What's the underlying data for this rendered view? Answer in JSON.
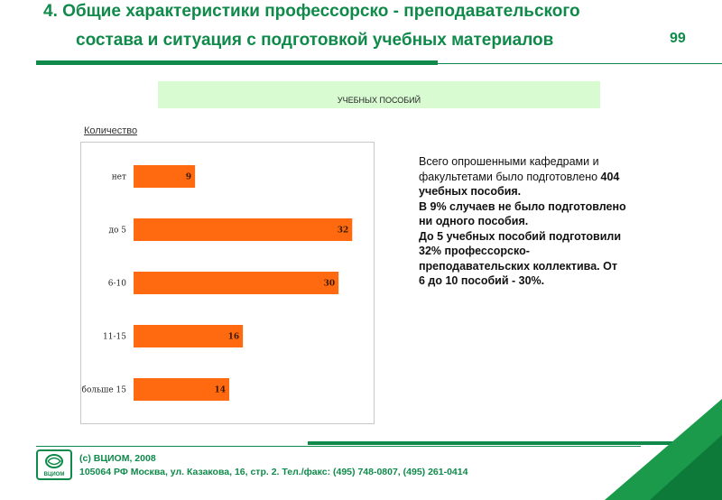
{
  "slide": {
    "title_line1": "4. Общие характеристики профессорско - преподавательского",
    "title_line2": "состава и ситуация с подготовкой учебных материалов",
    "page_number": "99",
    "banner": "УЧЕБНЫХ ПОСОБИЙ",
    "quantity_label": "Количество"
  },
  "description": {
    "line1_prefix": "Всего опрошенными кафедрами и факультетами было подготовлено ",
    "line1_bold": "404 учебных пособия.",
    "para2": "В 9% случаев не было подготовлено ни одного пособия.",
    "para3": "До 5 учебных пособий подготовили 32% профессорско-преподавательских коллектива. От 6 до 10 пособий  - 30%."
  },
  "footer": {
    "copyright": "(с) ВЦИОМ, 2008",
    "address": "105064 РФ Москва, ул. Казакова, 16, стр. 2.  Тел./факс: (495) 748-0807, (495) 261-0414",
    "logo_text": "ВЦИОМ"
  },
  "colors": {
    "brand_green": "#0f8a4a",
    "bar_orange": "#ff6a10",
    "banner_bg": "#d8fbd2"
  },
  "chart_data": {
    "type": "bar",
    "orientation": "horizontal",
    "categories": [
      "нет",
      "до 5",
      "6-10",
      "11-15",
      "больше 15"
    ],
    "values": [
      9,
      32,
      30,
      16,
      14
    ],
    "ylabel": "Количество",
    "xlim": [
      0,
      35
    ],
    "grid": false
  }
}
